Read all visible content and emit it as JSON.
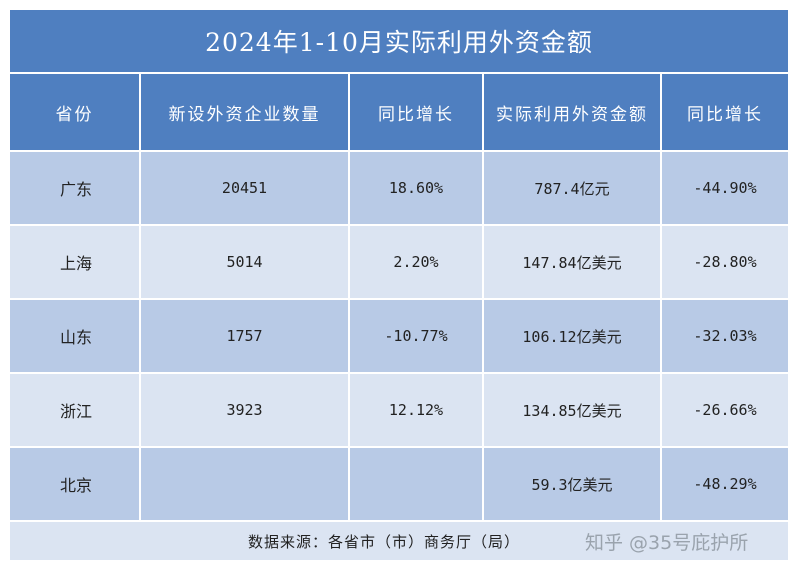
{
  "title": "2024年1-10月实际利用外资金额",
  "headers": [
    "省份",
    "新设外资企业数量",
    "同比增长",
    "实际利用外资金额",
    "同比增长"
  ],
  "rows": [
    {
      "province": "广东",
      "new_firms": "20451",
      "firms_yoy": "18.60%",
      "fdi_amount": "787.4亿元",
      "fdi_yoy": "-44.90%"
    },
    {
      "province": "上海",
      "new_firms": "5014",
      "firms_yoy": "2.20%",
      "fdi_amount": "147.84亿美元",
      "fdi_yoy": "-28.80%"
    },
    {
      "province": "山东",
      "new_firms": "1757",
      "firms_yoy": "-10.77%",
      "fdi_amount": "106.12亿美元",
      "fdi_yoy": "-32.03%"
    },
    {
      "province": "浙江",
      "new_firms": "3923",
      "firms_yoy": "12.12%",
      "fdi_amount": "134.85亿美元",
      "fdi_yoy": "-26.66%"
    },
    {
      "province": "北京",
      "new_firms": "",
      "firms_yoy": "",
      "fdi_amount": "59.3亿美元",
      "fdi_yoy": "-48.29%"
    }
  ],
  "source": "数据来源：各省市（市）商务厅（局）",
  "watermark": "知乎 @35号庇护所",
  "colors": {
    "header_bg": "#4f7fc0",
    "row_dark": "#b8cae6",
    "row_light": "#dbe4f2"
  }
}
